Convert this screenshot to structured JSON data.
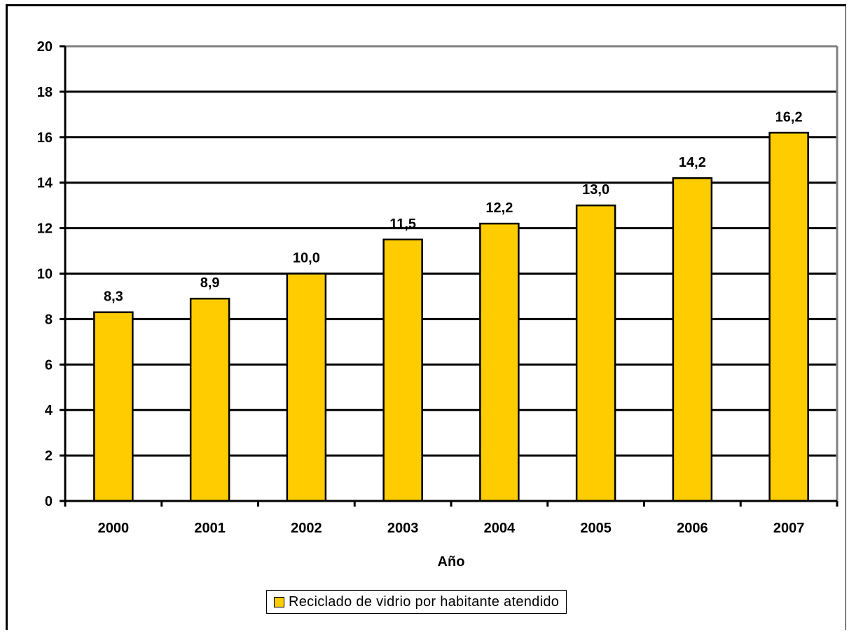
{
  "chart_data": {
    "type": "bar",
    "categories": [
      "2000",
      "2001",
      "2002",
      "2003",
      "2004",
      "2005",
      "2006",
      "2007"
    ],
    "series": [
      {
        "name": "Reciclado de vidrio por habitante atendido",
        "values": [
          8.3,
          8.9,
          10.0,
          11.5,
          12.2,
          13.0,
          14.2,
          16.2
        ],
        "labels": [
          "8,3",
          "8,9",
          "10,0",
          "11,5",
          "12,2",
          "13,0",
          "14,2",
          "16,2"
        ]
      }
    ],
    "xlabel": "Año",
    "ylabel": "",
    "ylim": [
      0,
      20
    ],
    "yticks": [
      0,
      2,
      4,
      6,
      8,
      10,
      12,
      14,
      16,
      18,
      20
    ],
    "grid": true,
    "legend_position": "bottom",
    "colors": {
      "bar": "#ffcc00",
      "bar_outline": "#000000",
      "grid": "#000000",
      "plot_border": "#808080"
    }
  }
}
